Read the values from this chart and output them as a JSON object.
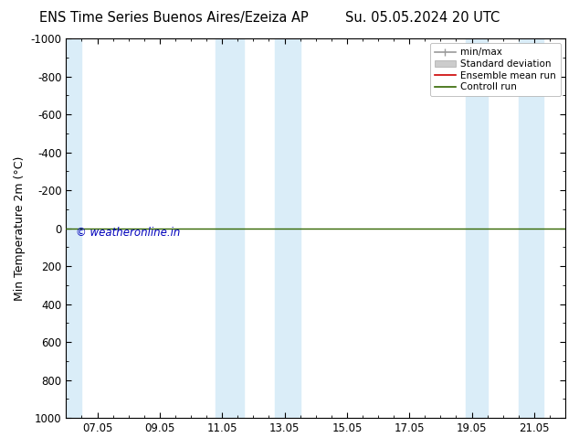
{
  "title_left": "ENS Time Series Buenos Aires/Ezeiza AP",
  "title_right": "Su. 05.05.2024 20 UTC",
  "ylabel": "Min Temperature 2m (°C)",
  "ylim": [
    -1000,
    1000
  ],
  "yticks": [
    -1000,
    -800,
    -600,
    -400,
    -200,
    0,
    200,
    400,
    600,
    800,
    1000
  ],
  "ytick_labels": [
    "-1000",
    "-800",
    "-600",
    "-400",
    "-200",
    "0",
    "200",
    "400",
    "600",
    "800",
    "1000"
  ],
  "xtick_labels": [
    "07.05",
    "09.05",
    "11.05",
    "13.05",
    "15.05",
    "17.05",
    "19.05",
    "21.05"
  ],
  "xtick_positions": [
    1.0,
    3.0,
    5.0,
    7.0,
    9.0,
    11.0,
    13.0,
    15.0
  ],
  "xlim": [
    0,
    16
  ],
  "shaded_regions": [
    [
      -0.2,
      0.5
    ],
    [
      4.8,
      5.7
    ],
    [
      6.7,
      7.5
    ],
    [
      12.8,
      13.5
    ],
    [
      14.5,
      15.3
    ]
  ],
  "shaded_color": "#daedf8",
  "hline_y": 0,
  "hline_color": "#336600",
  "hline_linewidth": 1.0,
  "ensemble_mean_color": "#cc0000",
  "watermark": "© weatheronline.in",
  "watermark_color": "#0000bb",
  "legend_items": [
    {
      "label": "min/max",
      "color": "#999999"
    },
    {
      "label": "Standard deviation",
      "color": "#cccccc"
    },
    {
      "label": "Ensemble mean run",
      "color": "#cc0000"
    },
    {
      "label": "Controll run",
      "color": "#336600"
    }
  ],
  "bg_color": "#ffffff",
  "title_fontsize": 10.5,
  "axis_label_fontsize": 9,
  "tick_fontsize": 8.5,
  "legend_fontsize": 7.5
}
